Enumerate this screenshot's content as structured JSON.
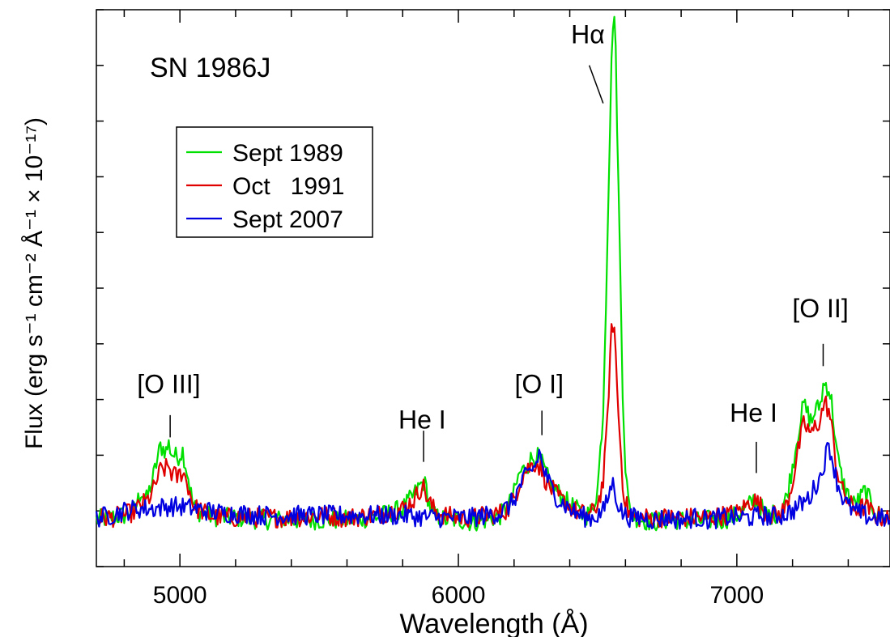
{
  "chart_data": {
    "type": "line",
    "title": "SN 1986J",
    "xlabel": "Wavelength (Å)",
    "ylabel": "Flux (erg s⁻¹ cm⁻² Å⁻¹ × 10⁻¹⁷)",
    "xlim": [
      4700,
      7550
    ],
    "ylim": [
      -2,
      23
    ],
    "xticks": [
      5000,
      6000,
      7000
    ],
    "yticks": [
      0,
      5,
      10,
      15,
      20
    ],
    "x_minor_step": 200,
    "y_minor_step": 2.5,
    "grid": false,
    "legend_position": "upper-left",
    "series": [
      {
        "name": "Sept 1989",
        "color": "#00e000",
        "x": [
          4700,
          4750,
          4800,
          4840,
          4860,
          4880,
          4900,
          4930,
          4950,
          4960,
          4970,
          4990,
          5010,
          5030,
          5045,
          5060,
          5080,
          5100,
          5150,
          5200,
          5300,
          5400,
          5500,
          5600,
          5700,
          5800,
          5840,
          5860,
          5875,
          5885,
          5895,
          5910,
          5930,
          5950,
          6000,
          6050,
          6100,
          6150,
          6180,
          6200,
          6220,
          6240,
          6260,
          6280,
          6300,
          6320,
          6340,
          6360,
          6380,
          6400,
          6420,
          6440,
          6460,
          6480,
          6500,
          6520,
          6530,
          6540,
          6550,
          6555,
          6560,
          6565,
          6570,
          6580,
          6590,
          6600,
          6610,
          6620,
          6640,
          6660,
          6700,
          6750,
          6800,
          6850,
          6900,
          6950,
          7000,
          7040,
          7060,
          7080,
          7100,
          7120,
          7140,
          7160,
          7180,
          7200,
          7220,
          7240,
          7260,
          7270,
          7280,
          7290,
          7300,
          7310,
          7320,
          7330,
          7340,
          7350,
          7360,
          7380,
          7400,
          7420,
          7440,
          7460,
          7480,
          7500,
          7550
        ],
        "y": [
          0.1,
          0.2,
          0.3,
          0.6,
          1.4,
          1.0,
          1.8,
          3.4,
          3.2,
          3.5,
          3.1,
          2.9,
          3.2,
          2.0,
          0.9,
          0.5,
          0.4,
          0.3,
          0.2,
          0.2,
          0.1,
          0.1,
          0.1,
          0.1,
          0.2,
          0.6,
          1.2,
          1.6,
          1.8,
          1.5,
          0.8,
          0.3,
          0.2,
          0.1,
          0.1,
          0.0,
          0.1,
          0.3,
          0.7,
          1.3,
          2.2,
          2.4,
          2.8,
          3.0,
          2.6,
          2.0,
          1.6,
          1.3,
          1.0,
          0.8,
          0.6,
          0.4,
          0.3,
          0.5,
          1.5,
          5.0,
          10.0,
          15.5,
          20.5,
          22.5,
          22.7,
          21.0,
          18.0,
          12.0,
          6.0,
          2.5,
          0.9,
          0.4,
          0.2,
          0.1,
          0.0,
          0.1,
          0.1,
          0.0,
          0.1,
          0.1,
          0.3,
          0.7,
          1.0,
          0.8,
          0.4,
          0.3,
          0.4,
          0.5,
          1.2,
          2.5,
          4.0,
          5.3,
          4.7,
          4.5,
          5.0,
          5.1,
          5.3,
          6.1,
          6.2,
          6.0,
          5.4,
          4.2,
          3.0,
          1.8,
          1.2,
          0.8,
          1.0,
          1.4,
          0.9,
          0.4,
          0.1
        ]
      },
      {
        "name": "Oct   1991",
        "color": "#e00000",
        "x": [
          4700,
          4750,
          4800,
          4840,
          4860,
          4880,
          4900,
          4930,
          4950,
          4960,
          4970,
          4990,
          5010,
          5030,
          5045,
          5060,
          5080,
          5100,
          5150,
          5200,
          5300,
          5400,
          5500,
          5600,
          5700,
          5800,
          5840,
          5860,
          5870,
          5880,
          5890,
          5910,
          5930,
          5950,
          6000,
          6050,
          6100,
          6150,
          6180,
          6200,
          6220,
          6240,
          6260,
          6280,
          6300,
          6320,
          6340,
          6360,
          6380,
          6400,
          6420,
          6440,
          6460,
          6480,
          6500,
          6520,
          6530,
          6540,
          6550,
          6555,
          6560,
          6565,
          6570,
          6580,
          6590,
          6600,
          6610,
          6620,
          6640,
          6660,
          6700,
          6750,
          6800,
          6850,
          6900,
          6950,
          7000,
          7040,
          7060,
          7080,
          7100,
          7120,
          7140,
          7160,
          7180,
          7200,
          7220,
          7240,
          7260,
          7270,
          7280,
          7290,
          7300,
          7310,
          7320,
          7330,
          7340,
          7350,
          7360,
          7380,
          7400,
          7420,
          7440,
          7460,
          7480,
          7500,
          7550
        ],
        "y": [
          0.2,
          0.2,
          0.3,
          0.5,
          0.8,
          0.9,
          1.3,
          2.3,
          2.4,
          2.5,
          2.2,
          2.0,
          2.3,
          1.6,
          0.9,
          0.6,
          0.5,
          0.3,
          0.2,
          0.2,
          0.2,
          0.2,
          0.3,
          0.2,
          0.3,
          0.6,
          1.0,
          1.4,
          1.7,
          1.4,
          1.0,
          0.6,
          0.4,
          0.3,
          0.2,
          0.2,
          0.3,
          0.4,
          0.6,
          1.0,
          1.8,
          2.3,
          2.5,
          2.7,
          2.3,
          1.7,
          1.4,
          1.1,
          0.9,
          0.7,
          0.5,
          0.4,
          0.3,
          0.4,
          0.8,
          1.8,
          3.5,
          6.0,
          8.5,
          8.9,
          8.7,
          7.5,
          6.0,
          3.8,
          1.8,
          0.9,
          0.5,
          0.3,
          0.2,
          0.2,
          0.2,
          0.2,
          0.2,
          0.2,
          0.2,
          0.3,
          0.4,
          0.8,
          1.0,
          0.8,
          0.5,
          0.3,
          0.3,
          0.4,
          0.8,
          1.8,
          3.2,
          4.4,
          4.1,
          3.9,
          4.3,
          4.4,
          4.6,
          5.2,
          5.3,
          5.0,
          4.3,
          3.3,
          2.3,
          1.4,
          0.9,
          0.6,
          0.6,
          0.7,
          0.5,
          0.3,
          0.1
        ]
      },
      {
        "name": "Sept 2007",
        "color": "#0000e0",
        "x": [
          4700,
          4750,
          4800,
          4850,
          4900,
          4950,
          5000,
          5050,
          5100,
          5150,
          5200,
          5300,
          5400,
          5500,
          5600,
          5700,
          5800,
          5900,
          6000,
          6050,
          6100,
          6150,
          6180,
          6200,
          6220,
          6240,
          6260,
          6280,
          6290,
          6300,
          6320,
          6340,
          6360,
          6380,
          6400,
          6420,
          6440,
          6460,
          6480,
          6500,
          6520,
          6530,
          6540,
          6550,
          6555,
          6560,
          6570,
          6580,
          6590,
          6600,
          6620,
          6660,
          6700,
          6750,
          6800,
          6850,
          6900,
          6950,
          7000,
          7040,
          7060,
          7080,
          7100,
          7120,
          7140,
          7160,
          7180,
          7200,
          7220,
          7240,
          7260,
          7270,
          7280,
          7290,
          7300,
          7310,
          7320,
          7330,
          7340,
          7350,
          7360,
          7380,
          7400,
          7420,
          7440,
          7460,
          7480,
          7500,
          7550
        ],
        "y": [
          0.2,
          0.3,
          0.5,
          0.6,
          0.6,
          0.7,
          0.7,
          0.6,
          0.5,
          0.4,
          0.4,
          0.3,
          0.3,
          0.3,
          0.3,
          0.3,
          0.3,
          0.2,
          0.2,
          0.2,
          0.3,
          0.4,
          0.7,
          1.0,
          1.6,
          2.0,
          2.3,
          2.6,
          3.2,
          2.6,
          1.9,
          1.4,
          1.0,
          0.8,
          0.6,
          0.4,
          0.3,
          0.2,
          0.2,
          0.3,
          0.5,
          0.8,
          1.2,
          1.7,
          1.7,
          1.5,
          1.0,
          0.6,
          0.4,
          0.3,
          0.2,
          0.2,
          0.1,
          0.2,
          0.1,
          0.2,
          0.1,
          0.2,
          0.2,
          0.2,
          0.2,
          0.3,
          0.3,
          0.2,
          0.3,
          0.3,
          0.4,
          0.5,
          0.7,
          0.9,
          1.1,
          1.3,
          1.6,
          1.8,
          2.0,
          2.5,
          3.0,
          3.5,
          3.0,
          2.4,
          1.8,
          1.1,
          0.7,
          0.5,
          0.4,
          0.3,
          0.2,
          0.2,
          0.1
        ]
      }
    ],
    "annotations": [
      {
        "text": "[O III]",
        "x": 4960,
        "y": 5.8,
        "line_x": 4965,
        "line_y": [
          4.8,
          3.8
        ]
      },
      {
        "text": "He I",
        "x": 5870,
        "y": 4.2,
        "line_x": 5875,
        "line_y": [
          4.1,
          2.7
        ]
      },
      {
        "text": "[O I]",
        "x": 6290,
        "y": 5.8,
        "line_x": 6300,
        "line_y": [
          5.0,
          3.9
        ]
      },
      {
        "text": "Hα",
        "x": 6465,
        "y": 21.5,
        "line_x": 6470,
        "line_y": [
          20.5,
          18.8
        ],
        "line_x2": 6520
      },
      {
        "text": "He I",
        "x": 7060,
        "y": 4.5,
        "line_x": 7070,
        "line_y": [
          3.6,
          2.2
        ]
      },
      {
        "text": "[O II]",
        "x": 7300,
        "y": 9.2,
        "line_x": 7310,
        "line_y": [
          8.0,
          7.0
        ]
      }
    ]
  }
}
